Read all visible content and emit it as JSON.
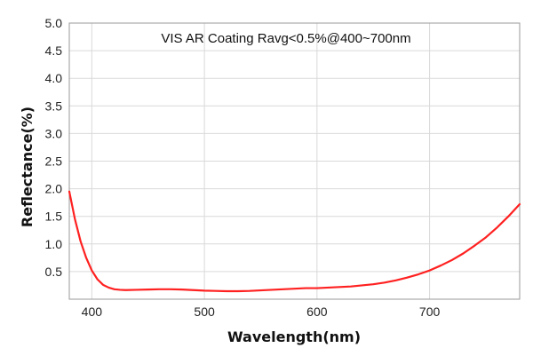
{
  "chart_data": {
    "type": "line",
    "title": "VIS AR Coating Ravg<0.5%@400~700nm",
    "xlabel": "Wavelength(nm)",
    "ylabel": "Reflectance(%)",
    "xlim": [
      380,
      780
    ],
    "ylim": [
      0,
      5.0
    ],
    "xticks": [
      400,
      500,
      600,
      700
    ],
    "yticks": [
      0.5,
      1.0,
      1.5,
      2.0,
      2.5,
      3.0,
      3.5,
      4.0,
      4.5,
      5.0
    ],
    "ytick_labels": [
      "0.5",
      "1.0",
      "1.5",
      "2.0",
      "2.5",
      "3.0",
      "3.5",
      "4.0",
      "4.5",
      "5.0"
    ],
    "grid": true,
    "line_color": "#ff2020",
    "series": [
      {
        "x": [
          380,
          385,
          390,
          395,
          400,
          405,
          410,
          415,
          420,
          425,
          430,
          440,
          450,
          460,
          470,
          480,
          490,
          500,
          510,
          520,
          530,
          540,
          550,
          560,
          570,
          580,
          590,
          600,
          610,
          620,
          630,
          640,
          650,
          660,
          670,
          680,
          690,
          700,
          710,
          720,
          730,
          740,
          750,
          760,
          770,
          780
        ],
        "y": [
          1.95,
          1.45,
          1.05,
          0.75,
          0.52,
          0.36,
          0.26,
          0.21,
          0.18,
          0.17,
          0.165,
          0.17,
          0.175,
          0.18,
          0.18,
          0.175,
          0.165,
          0.155,
          0.15,
          0.145,
          0.145,
          0.15,
          0.16,
          0.17,
          0.18,
          0.19,
          0.2,
          0.2,
          0.21,
          0.22,
          0.23,
          0.25,
          0.27,
          0.3,
          0.34,
          0.39,
          0.45,
          0.52,
          0.61,
          0.71,
          0.83,
          0.97,
          1.12,
          1.3,
          1.5,
          1.72
        ]
      }
    ]
  }
}
